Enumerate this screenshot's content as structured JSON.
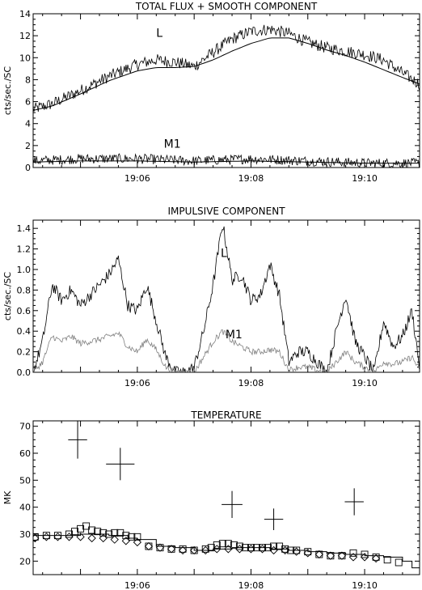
{
  "chart_data": [
    {
      "type": "line",
      "title": "TOTAL FLUX + SMOOTH COMPONENT",
      "ylabel": "cts/sec./SC",
      "xlim": [
        "19:04:10",
        "19:10:58"
      ],
      "ylim": [
        0,
        14
      ],
      "yticks": [
        0,
        2,
        4,
        6,
        8,
        10,
        12,
        14
      ],
      "xticks": [
        "19:06",
        "19:08",
        "19:10"
      ],
      "annotations": [
        "L",
        "M1"
      ],
      "series": [
        {
          "name": "L",
          "noise": 0.55,
          "x": [
            "19:04:10",
            "19:04:30",
            "19:05:00",
            "19:05:30",
            "19:06:00",
            "19:06:20",
            "19:06:40",
            "19:07:00",
            "19:07:20",
            "19:07:40",
            "19:08:00",
            "19:08:20",
            "19:08:40",
            "19:09:00",
            "19:09:20",
            "19:09:40",
            "19:10:00",
            "19:10:20",
            "19:10:40",
            "19:10:58"
          ],
          "values": [
            5.3,
            5.8,
            7.0,
            8.3,
            9.4,
            9.8,
            9.6,
            9.2,
            10.5,
            11.7,
            12.4,
            12.6,
            12.2,
            11.4,
            10.9,
            10.6,
            10.3,
            9.8,
            8.6,
            7.6
          ]
        },
        {
          "name": "L smooth component",
          "noise": 0,
          "x": [
            "19:04:10",
            "19:04:30",
            "19:05:00",
            "19:05:30",
            "19:06:00",
            "19:06:20",
            "19:06:40",
            "19:07:00",
            "19:07:20",
            "19:07:40",
            "19:08:00",
            "19:08:20",
            "19:08:40",
            "19:09:00",
            "19:09:20",
            "19:09:40",
            "19:10:00",
            "19:10:20",
            "19:10:40",
            "19:10:58"
          ],
          "values": [
            5.2,
            5.6,
            6.7,
            7.9,
            8.8,
            9.1,
            9.1,
            9.2,
            9.8,
            10.6,
            11.3,
            11.8,
            11.8,
            11.3,
            10.7,
            10.2,
            9.6,
            8.9,
            8.2,
            7.6
          ]
        },
        {
          "name": "M1",
          "noise": 0.45,
          "x": [
            "19:04:10",
            "19:05:00",
            "19:06:00",
            "19:07:00",
            "19:08:00",
            "19:09:00",
            "19:10:00",
            "19:10:58"
          ],
          "values": [
            0.6,
            0.8,
            0.8,
            0.6,
            0.8,
            0.6,
            0.4,
            0.4
          ]
        },
        {
          "name": "M1 smooth component",
          "noise": 0,
          "x": [
            "19:04:10",
            "19:05:00",
            "19:06:00",
            "19:07:00",
            "19:08:00",
            "19:09:00",
            "19:10:00",
            "19:10:58"
          ],
          "values": [
            0.5,
            0.6,
            0.6,
            0.5,
            0.6,
            0.5,
            0.4,
            0.4
          ]
        }
      ]
    },
    {
      "type": "line",
      "title": "IMPULSIVE COMPONENT",
      "ylabel": "cts/sec./SC",
      "xlim": [
        "19:04:10",
        "19:10:58"
      ],
      "ylim": [
        0,
        1.48
      ],
      "yticks": [
        0.0,
        0.2,
        0.4,
        0.6,
        0.8,
        1.0,
        1.2,
        1.4
      ],
      "xticks": [
        "19:06",
        "19:08",
        "19:10"
      ],
      "annotations": [
        "L",
        "M1"
      ],
      "series": [
        {
          "name": "L",
          "color": "#000000",
          "noise": 0.06,
          "x": [
            "19:04:10",
            "19:04:20",
            "19:04:30",
            "19:04:40",
            "19:04:50",
            "19:05:00",
            "19:05:10",
            "19:05:20",
            "19:05:30",
            "19:05:40",
            "19:05:50",
            "19:06:00",
            "19:06:10",
            "19:06:20",
            "19:06:30",
            "19:06:40",
            "19:06:50",
            "19:07:00",
            "19:07:10",
            "19:07:20",
            "19:07:30",
            "19:07:40",
            "19:07:50",
            "19:08:00",
            "19:08:10",
            "19:08:20",
            "19:08:30",
            "19:08:40",
            "19:08:50",
            "19:09:00",
            "19:09:10",
            "19:09:20",
            "19:09:30",
            "19:09:40",
            "19:09:50",
            "19:10:00",
            "19:10:10",
            "19:10:20",
            "19:10:30",
            "19:10:40",
            "19:10:50",
            "19:10:58"
          ],
          "values": [
            0.0,
            0.3,
            0.85,
            0.7,
            0.8,
            0.65,
            0.75,
            0.85,
            0.95,
            1.1,
            0.65,
            0.6,
            0.85,
            0.5,
            0.15,
            0.0,
            0.0,
            0.05,
            0.4,
            0.85,
            1.45,
            0.9,
            0.95,
            0.7,
            0.75,
            1.05,
            0.75,
            0.1,
            0.2,
            0.2,
            0.1,
            0.0,
            0.4,
            0.75,
            0.3,
            0.15,
            0.0,
            0.5,
            0.25,
            0.35,
            0.6,
            0.05
          ]
        },
        {
          "name": "M1",
          "color": "#808080",
          "noise": 0.03,
          "x": [
            "19:04:10",
            "19:04:20",
            "19:04:30",
            "19:04:40",
            "19:04:50",
            "19:05:00",
            "19:05:10",
            "19:05:20",
            "19:05:30",
            "19:05:40",
            "19:05:50",
            "19:06:00",
            "19:06:10",
            "19:06:20",
            "19:06:30",
            "19:06:40",
            "19:06:50",
            "19:07:00",
            "19:07:10",
            "19:07:20",
            "19:07:30",
            "19:07:40",
            "19:07:50",
            "19:08:00",
            "19:08:10",
            "19:08:20",
            "19:08:30",
            "19:08:40",
            "19:08:50",
            "19:09:00",
            "19:09:10",
            "19:09:20",
            "19:09:30",
            "19:09:40",
            "19:09:50",
            "19:10:00",
            "19:10:10",
            "19:10:20",
            "19:10:30",
            "19:10:40",
            "19:10:50",
            "19:10:58"
          ],
          "values": [
            0.0,
            0.1,
            0.35,
            0.3,
            0.35,
            0.28,
            0.3,
            0.32,
            0.35,
            0.38,
            0.25,
            0.2,
            0.32,
            0.22,
            0.05,
            0.0,
            0.0,
            0.0,
            0.15,
            0.3,
            0.4,
            0.3,
            0.25,
            0.2,
            0.2,
            0.22,
            0.2,
            0.02,
            0.05,
            0.05,
            0.02,
            0.0,
            0.1,
            0.2,
            0.1,
            0.05,
            0.0,
            0.1,
            0.08,
            0.1,
            0.15,
            0.02
          ]
        }
      ]
    },
    {
      "type": "scatter",
      "title": "TEMPERATURE",
      "ylabel": "MK",
      "xlim": [
        "19:04:10",
        "19:10:58"
      ],
      "ylim": [
        15,
        72
      ],
      "yticks": [
        20,
        30,
        40,
        50,
        60,
        70
      ],
      "xticks": [
        "19:06",
        "19:08",
        "19:10"
      ],
      "crosses": [
        {
          "x": "19:04:57",
          "y": 65,
          "x_err_sec": 10,
          "y_err": 7
        },
        {
          "x": "19:05:42",
          "y": 56,
          "x_err_sec": 15,
          "y_err": 6
        },
        {
          "x": "19:07:40",
          "y": 41,
          "x_err_sec": 11,
          "y_err": 5
        },
        {
          "x": "19:08:24",
          "y": 35.5,
          "x_err_sec": 10,
          "y_err": 4
        },
        {
          "x": "19:09:49",
          "y": 42,
          "x_err_sec": 10,
          "y_err": 5
        }
      ],
      "squares": {
        "x": [
          "19:04:12",
          "19:04:24",
          "19:04:36",
          "19:04:48",
          "19:04:54",
          "19:05:00",
          "19:05:06",
          "19:05:12",
          "19:05:18",
          "19:05:24",
          "19:05:30",
          "19:05:36",
          "19:05:42",
          "19:05:48",
          "19:05:54",
          "19:06:00",
          "19:06:12",
          "19:06:24",
          "19:06:36",
          "19:06:48",
          "19:07:00",
          "19:07:12",
          "19:07:18",
          "19:07:24",
          "19:07:30",
          "19:07:36",
          "19:07:42",
          "19:07:48",
          "19:07:54",
          "19:08:00",
          "19:08:06",
          "19:08:12",
          "19:08:18",
          "19:08:24",
          "19:08:30",
          "19:08:36",
          "19:08:42",
          "19:08:48",
          "19:09:00",
          "19:09:12",
          "19:09:24",
          "19:09:36",
          "19:09:48",
          "19:10:00",
          "19:10:12",
          "19:10:24",
          "19:10:36"
        ],
        "values": [
          29,
          29.5,
          29.5,
          30,
          31,
          32,
          33,
          31.5,
          31,
          30.5,
          30,
          30.5,
          30.5,
          29.5,
          29,
          29,
          25.5,
          25,
          24.5,
          24.5,
          24,
          24.5,
          25,
          26,
          26.5,
          26.5,
          26,
          25.5,
          25,
          25,
          25,
          25,
          25,
          25.5,
          25.5,
          24.5,
          24,
          24,
          23.5,
          22.5,
          22,
          22,
          23,
          22.5,
          21.5,
          20.5,
          19.5
        ]
      },
      "diamonds": {
        "x": [
          "19:04:12",
          "19:04:24",
          "19:04:36",
          "19:04:48",
          "19:05:00",
          "19:05:12",
          "19:05:24",
          "19:05:36",
          "19:05:48",
          "19:06:00",
          "19:06:12",
          "19:06:24",
          "19:06:36",
          "19:06:48",
          "19:07:00",
          "19:07:12",
          "19:07:24",
          "19:07:36",
          "19:07:48",
          "19:08:00",
          "19:08:12",
          "19:08:24",
          "19:08:36",
          "19:08:48",
          "19:09:00",
          "19:09:12",
          "19:09:24",
          "19:09:36",
          "19:09:48",
          "19:10:00",
          "19:10:12"
        ],
        "values": [
          28.5,
          29,
          29,
          29,
          29,
          28.5,
          28.5,
          28,
          27.5,
          27,
          25.5,
          25,
          24.5,
          24,
          24,
          24,
          24.5,
          24.5,
          24.5,
          24.5,
          24.5,
          24,
          24,
          23.5,
          23,
          22.5,
          22,
          22,
          21.5,
          21.5,
          21
        ]
      },
      "step_line": {
        "x": [
          "19:04:10",
          "19:04:30",
          "19:05:00",
          "19:05:30",
          "19:05:50",
          "19:06:00",
          "19:06:20",
          "19:06:40",
          "19:07:00",
          "19:07:20",
          "19:07:40",
          "19:08:00",
          "19:08:20",
          "19:08:40",
          "19:09:00",
          "19:09:20",
          "19:09:40",
          "19:10:00",
          "19:10:20",
          "19:10:40",
          "19:10:50",
          "19:10:58"
        ],
        "values": [
          29.5,
          29.5,
          30,
          29.5,
          28.5,
          28,
          25.5,
          25,
          24,
          24.5,
          25,
          25,
          24.5,
          24,
          23.5,
          23,
          22.5,
          22,
          21.5,
          20,
          17.5,
          17.5
        ]
      }
    }
  ]
}
